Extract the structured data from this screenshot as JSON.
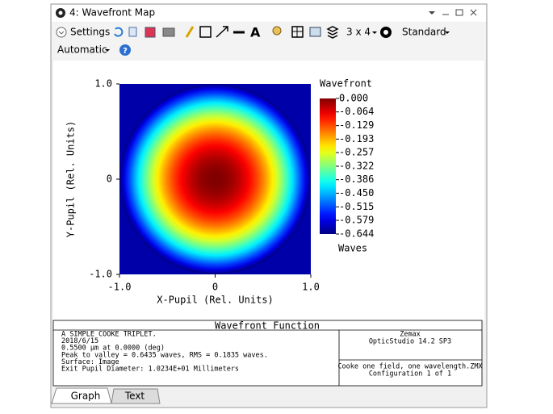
{
  "window": {
    "title": "4: Wavefront Map"
  },
  "toolbar": {
    "settings": "Settings",
    "layout": "3 x 4",
    "view": "Standard",
    "mode": "Automatic"
  },
  "chart_data": {
    "type": "heatmap",
    "colormap": "jet",
    "xlabel": "X-Pupil (Rel. Units)",
    "ylabel": "Y-Pupil (Rel. Units)",
    "xlim": [
      -1,
      1
    ],
    "ylim": [
      -1,
      1
    ],
    "xticks": [
      {
        "value": -1,
        "label": "-1.0"
      },
      0,
      {
        "value": 1,
        "label": "1.0"
      }
    ],
    "yticks": [
      {
        "value": -1,
        "label": "-1.0"
      },
      0,
      {
        "value": 1,
        "label": "1.0"
      }
    ],
    "colorbar_title": "Wavefront",
    "colorbar_label": "Waves",
    "clim": [
      -0.644,
      0
    ],
    "cticks": [
      {
        "value": 0,
        "label": "0.000"
      },
      -0.064,
      -0.129,
      -0.193,
      -0.257,
      -0.322,
      -0.386,
      {
        "value": -0.45,
        "label": "-0.450"
      },
      -0.515,
      -0.579,
      -0.644
    ]
  },
  "info": {
    "header": "Wavefront Function",
    "lines": [
      "A SIMPLE COOKE TRIPLET.",
      "2018/6/15",
      "0.5500 µm at 0.0000 (deg)",
      "Peak to valley = 0.6435 waves, RMS = 0.1835 waves.",
      "Surface: Image",
      "Exit Pupil Diameter: 1.0234E+01 Millimeters"
    ],
    "program": [
      "Zemax",
      "OpticStudio 14.2 SP3"
    ],
    "file": [
      "Cooke one field, one wavelength.ZMX",
      "Configuration 1 of 1"
    ]
  },
  "tabs": [
    "Graph",
    "Text"
  ]
}
